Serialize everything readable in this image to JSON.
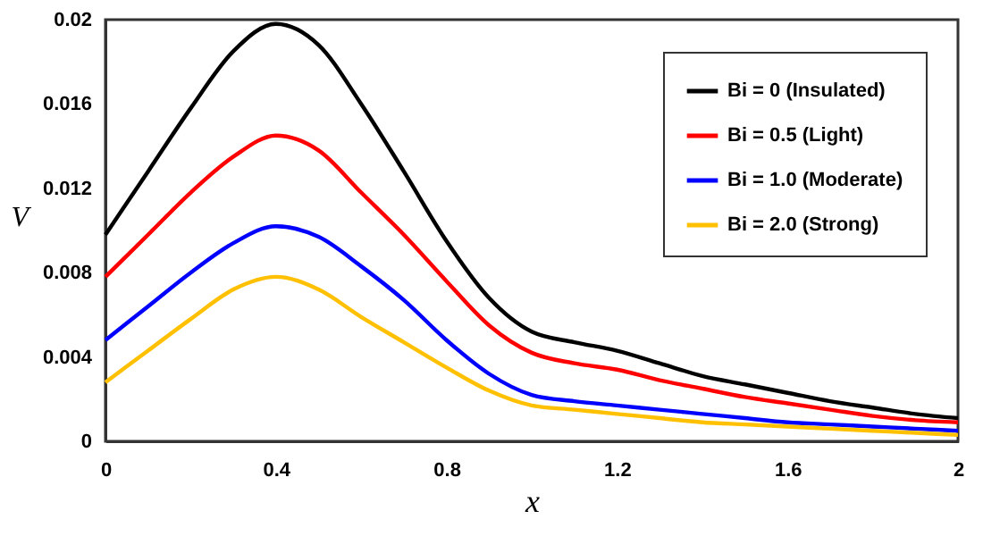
{
  "chart_data": {
    "type": "line",
    "xlabel": "x",
    "ylabel": "V",
    "x": [
      0,
      0.1,
      0.2,
      0.3,
      0.4,
      0.5,
      0.6,
      0.7,
      0.8,
      0.9,
      1.0,
      1.1,
      1.2,
      1.3,
      1.4,
      1.5,
      1.6,
      1.7,
      1.8,
      1.9,
      2.0
    ],
    "series": [
      {
        "name": "Bi = 0 (Insulated)",
        "color": "#000000",
        "values": [
          0.0098,
          0.0128,
          0.0158,
          0.0185,
          0.0198,
          0.0188,
          0.016,
          0.0128,
          0.0095,
          0.0068,
          0.0052,
          0.0047,
          0.0043,
          0.0037,
          0.0031,
          0.0027,
          0.0023,
          0.0019,
          0.0016,
          0.0013,
          0.0011
        ]
      },
      {
        "name": "Bi = 0.5 (Light)",
        "color": "#ff0000",
        "values": [
          0.0078,
          0.0098,
          0.0118,
          0.0135,
          0.0145,
          0.0138,
          0.0118,
          0.0098,
          0.0076,
          0.0055,
          0.0042,
          0.0037,
          0.0034,
          0.0029,
          0.0025,
          0.0021,
          0.0018,
          0.0015,
          0.0012,
          0.001,
          0.0009
        ]
      },
      {
        "name": "Bi = 1.0 (Moderate)",
        "color": "#0000ff",
        "values": [
          0.0048,
          0.0064,
          0.008,
          0.0094,
          0.0102,
          0.0097,
          0.0083,
          0.0067,
          0.0048,
          0.0032,
          0.0022,
          0.0019,
          0.0017,
          0.0015,
          0.0013,
          0.0011,
          0.0009,
          0.0008,
          0.0007,
          0.0006,
          0.0005
        ]
      },
      {
        "name": "Bi = 2.0 (Strong)",
        "color": "#ffc000",
        "values": [
          0.0028,
          0.0043,
          0.0058,
          0.0072,
          0.0078,
          0.0072,
          0.0059,
          0.0047,
          0.0035,
          0.0024,
          0.0017,
          0.0015,
          0.0013,
          0.0011,
          0.0009,
          0.0008,
          0.0007,
          0.0006,
          0.0005,
          0.0004,
          0.0003
        ]
      }
    ],
    "xlim": [
      0,
      2
    ],
    "xticks": [
      0,
      0.4,
      0.8,
      1.2,
      1.6,
      2
    ],
    "ylim": [
      0,
      0.02
    ],
    "yticks": [
      0,
      0.004,
      0.008,
      0.012,
      0.016,
      0.02
    ],
    "grid": false,
    "legend": "top right",
    "marker": "none",
    "line_style": "solid"
  }
}
